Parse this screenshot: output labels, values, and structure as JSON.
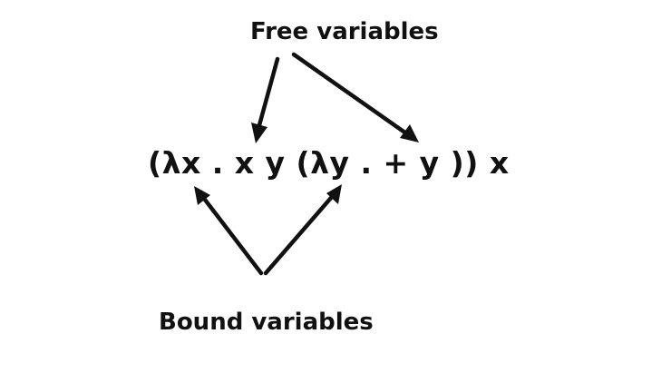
{
  "diagram": {
    "free_label": "Free variables",
    "bound_label": "Bound variables",
    "expression": "(λx . x y (λy . + y )) x",
    "ink_color": "#111111",
    "background_color": "#ffffff"
  }
}
